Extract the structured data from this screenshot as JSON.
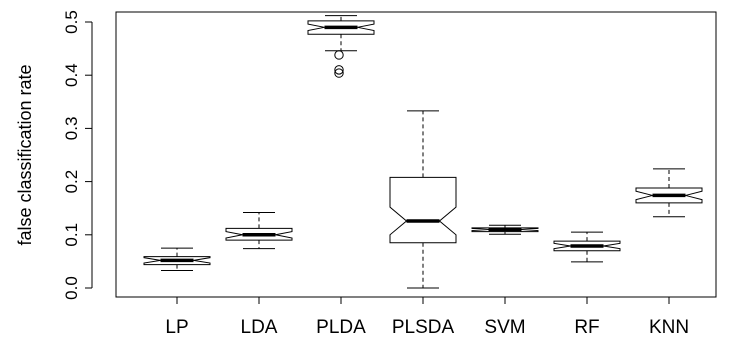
{
  "chart_data": {
    "type": "boxplot",
    "notched": true,
    "title": "",
    "xlabel": "",
    "ylabel": "false classification rate",
    "ylim": [
      0,
      0.5
    ],
    "yticks": [
      {
        "value": 0.0,
        "label": "0.0"
      },
      {
        "value": 0.1,
        "label": "0.1"
      },
      {
        "value": 0.2,
        "label": "0.2"
      },
      {
        "value": 0.3,
        "label": "0.3"
      },
      {
        "value": 0.4,
        "label": "0.4"
      },
      {
        "value": 0.5,
        "label": "0.5"
      }
    ],
    "categories": [
      "LP",
      "LDA",
      "PLDA",
      "PLSDA",
      "SVM",
      "RF",
      "KNN"
    ],
    "boxes": [
      {
        "category": "LP",
        "whisker_low": 0.033,
        "q1": 0.044,
        "median": 0.052,
        "q3": 0.059,
        "whisker_high": 0.075,
        "notch_low": 0.047,
        "notch_high": 0.057,
        "outliers": []
      },
      {
        "category": "LDA",
        "whisker_low": 0.074,
        "q1": 0.09,
        "median": 0.1,
        "q3": 0.112,
        "whisker_high": 0.142,
        "notch_low": 0.094,
        "notch_high": 0.106,
        "outliers": []
      },
      {
        "category": "PLDA",
        "whisker_low": 0.446,
        "q1": 0.477,
        "median": 0.49,
        "q3": 0.502,
        "whisker_high": 0.512,
        "notch_low": 0.484,
        "notch_high": 0.496,
        "outliers": [
          0.438,
          0.41,
          0.404
        ]
      },
      {
        "category": "PLSDA",
        "whisker_low": 0.0,
        "q1": 0.085,
        "median": 0.126,
        "q3": 0.208,
        "whisker_high": 0.333,
        "notch_low": 0.1,
        "notch_high": 0.152,
        "outliers": []
      },
      {
        "category": "SVM",
        "whisker_low": 0.101,
        "q1": 0.106,
        "median": 0.11,
        "q3": 0.113,
        "whisker_high": 0.118,
        "notch_low": 0.108,
        "notch_high": 0.112,
        "outliers": []
      },
      {
        "category": "RF",
        "whisker_low": 0.049,
        "q1": 0.07,
        "median": 0.079,
        "q3": 0.088,
        "whisker_high": 0.105,
        "notch_low": 0.074,
        "notch_high": 0.084,
        "outliers": []
      },
      {
        "category": "KNN",
        "whisker_low": 0.134,
        "q1": 0.16,
        "median": 0.174,
        "q3": 0.188,
        "whisker_high": 0.224,
        "notch_low": 0.166,
        "notch_high": 0.182,
        "outliers": []
      }
    ]
  }
}
